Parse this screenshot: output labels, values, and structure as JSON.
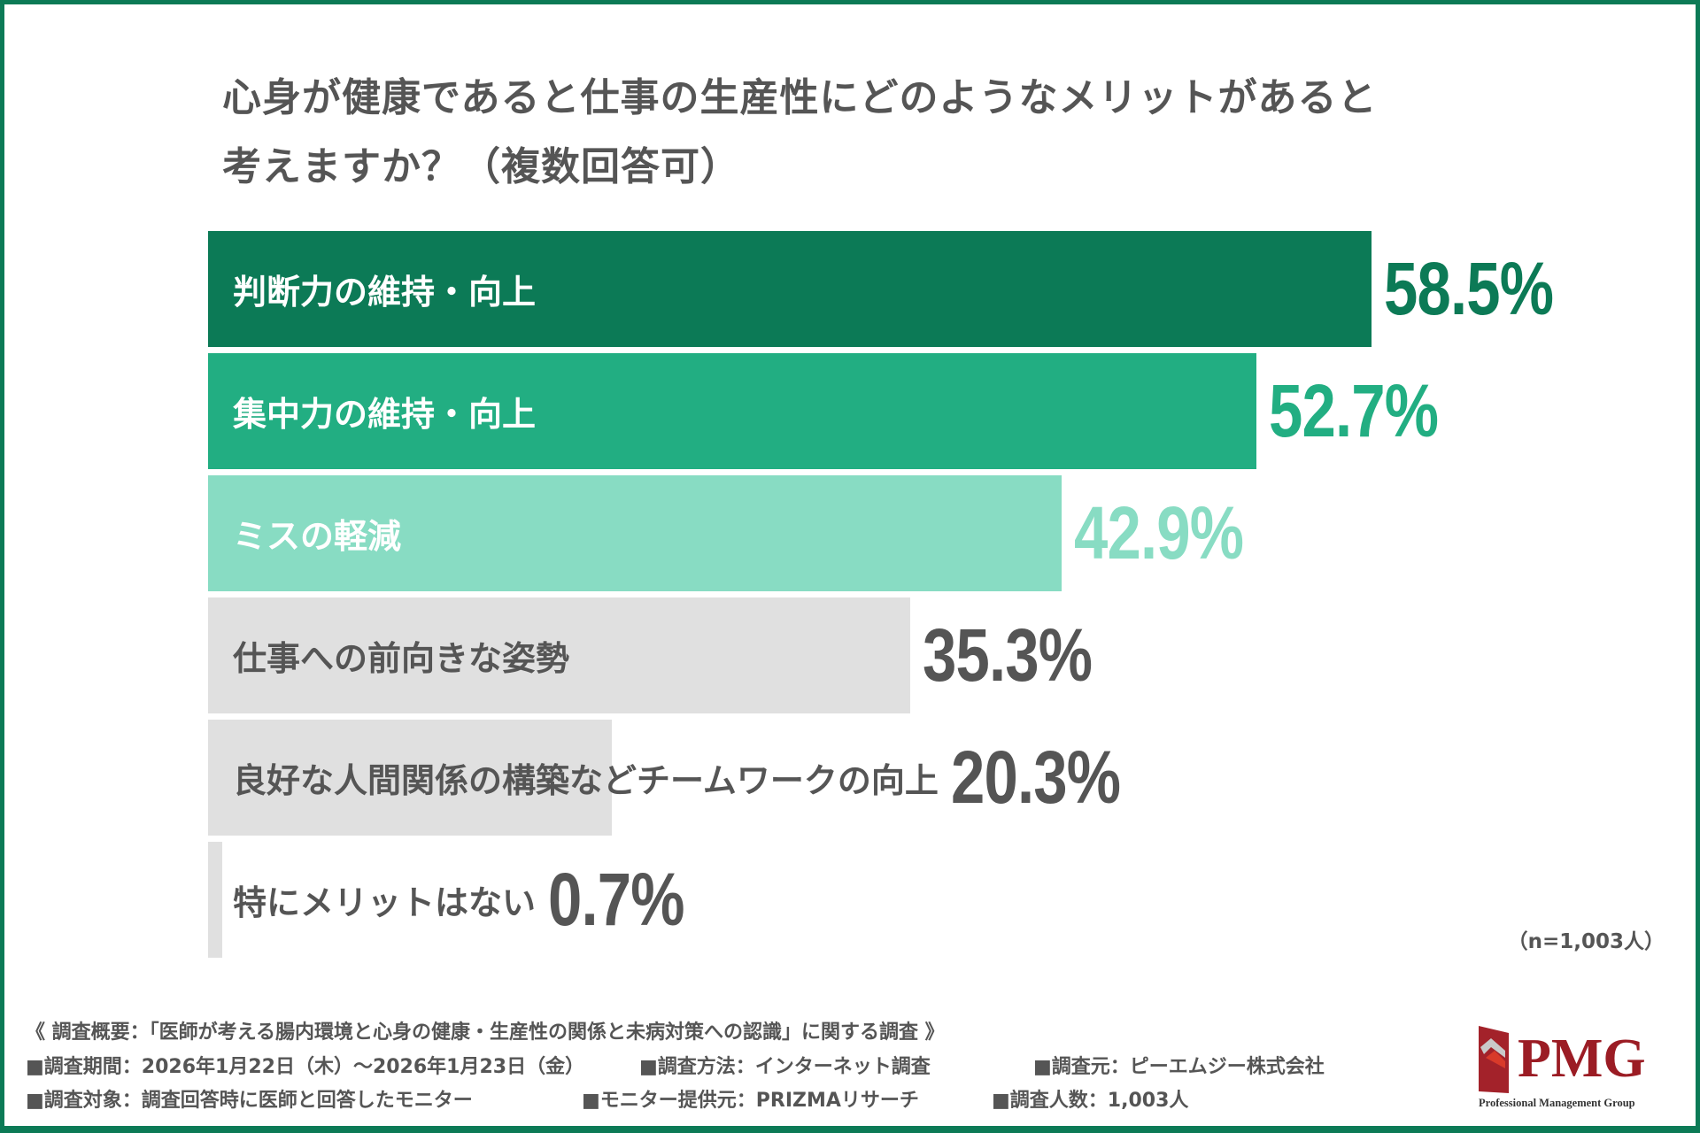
{
  "title": {
    "line1": "心身が健康であると仕事の生産性にどのようなメリットがあると",
    "line2": "考えますか？（複数回答可）"
  },
  "chart_data": {
    "type": "bar",
    "orientation": "horizontal",
    "categories": [
      "判断力の維持・向上",
      "集中力の維持・向上",
      "ミスの軽減",
      "仕事への前向きな姿勢",
      "良好な人間関係の構築などチームワークの向上",
      "特にメリットはない"
    ],
    "values": [
      58.5,
      52.7,
      42.9,
      35.3,
      20.3,
      0.7
    ],
    "value_labels": [
      "58.5%",
      "52.7%",
      "42.9%",
      "35.3%",
      "20.3%",
      "0.7%"
    ],
    "unit": "%",
    "bar_colors": [
      "#0c7a56",
      "#22ae82",
      "#88dcc3",
      "#e0e0e0",
      "#e0e0e0",
      "#e0e0e0"
    ],
    "label_colors": [
      "#ffffff",
      "#ffffff",
      "#ffffff",
      "#555555",
      "#555555",
      "#555555"
    ],
    "value_colors": [
      "#0c7a56",
      "#22ae82",
      "#88dcc3",
      "#555555",
      "#555555",
      "#555555"
    ],
    "grid": false,
    "legend": "none",
    "note": "（n=1,003人）"
  },
  "footer": {
    "summary": "《 調査概要：「医師が考える腸内環境と心身の健康・生産性の関係と未病対策への認識」に関する調査 》",
    "period": "■調査期間：2026年1月22日（木）～2026年1月23日（金）",
    "method": "■調査方法：インターネット調査",
    "source": "■調査元：ピーエムジー株式会社",
    "target": "■調査対象：調査回答時に医師と回答したモニター",
    "provider": "■モニター提供元：PRIZMAリサーチ",
    "count": "■調査人数：1,003人"
  },
  "logo": {
    "name": "PMG",
    "subtitle": "Professional Management Group",
    "color": "#9b1c24"
  },
  "accent": "#0c7a56"
}
